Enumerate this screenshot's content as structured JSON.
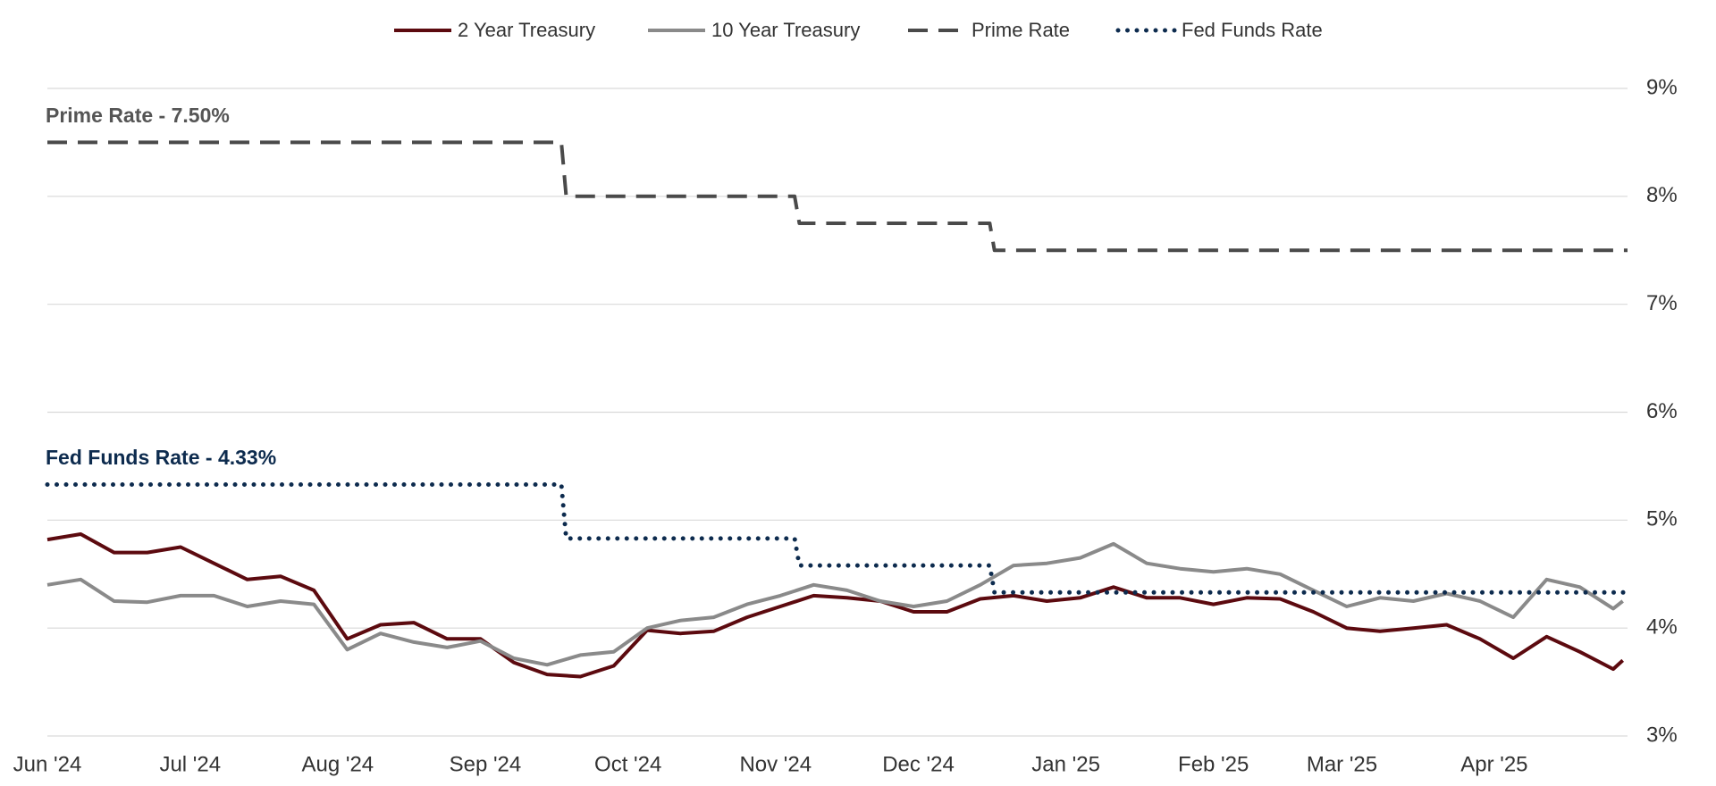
{
  "chart_data": {
    "type": "line",
    "annotations": [
      "Prime Rate - 7.50%",
      "Fed Funds Rate - 4.33%"
    ],
    "x": [
      0,
      7,
      14,
      21,
      28,
      35,
      42,
      49,
      56,
      63,
      70,
      77,
      84,
      91,
      98,
      105,
      112,
      119,
      126,
      133,
      140,
      147,
      154,
      161,
      168,
      175,
      182,
      189,
      196,
      203,
      210,
      217,
      224,
      231,
      238,
      245,
      252,
      259,
      266,
      273,
      280,
      287,
      294,
      301,
      308,
      315,
      322,
      329,
      331
    ],
    "xlim": [
      0,
      332
    ],
    "xticks": [
      {
        "value": 0,
        "label": "Jun '24"
      },
      {
        "value": 30,
        "label": "Jul '24"
      },
      {
        "value": 61,
        "label": "Aug '24"
      },
      {
        "value": 92,
        "label": "Sep '24"
      },
      {
        "value": 122,
        "label": "Oct '24"
      },
      {
        "value": 153,
        "label": "Nov '24"
      },
      {
        "value": 183,
        "label": "Dec '24"
      },
      {
        "value": 214,
        "label": "Jan '25"
      },
      {
        "value": 245,
        "label": "Feb '25"
      },
      {
        "value": 272,
        "label": "Mar '25"
      },
      {
        "value": 304,
        "label": "Apr '25"
      }
    ],
    "ylim": [
      3,
      9
    ],
    "yticks": [
      {
        "value": 3,
        "label": "3%"
      },
      {
        "value": 4,
        "label": "4%"
      },
      {
        "value": 5,
        "label": "5%"
      },
      {
        "value": 6,
        "label": "6%"
      },
      {
        "value": 7,
        "label": "7%"
      },
      {
        "value": 8,
        "label": "8%"
      },
      {
        "value": 9,
        "label": "9%"
      }
    ],
    "grid": true,
    "legend": "top",
    "series": [
      {
        "name": "2 Year Treasury",
        "color": "#5c0a0f",
        "style": "solid",
        "values": [
          4.82,
          4.87,
          4.7,
          4.7,
          4.75,
          4.6,
          4.45,
          4.48,
          4.35,
          3.9,
          4.03,
          4.05,
          3.9,
          3.9,
          3.68,
          3.57,
          3.55,
          3.65,
          3.98,
          3.95,
          3.97,
          4.1,
          4.2,
          4.3,
          4.28,
          4.25,
          4.15,
          4.15,
          4.27,
          4.3,
          4.25,
          4.28,
          4.38,
          4.28,
          4.28,
          4.22,
          4.28,
          4.27,
          4.15,
          4.0,
          3.97,
          4.0,
          4.03,
          3.9,
          3.72,
          3.92,
          3.78,
          3.62,
          3.7
        ]
      },
      {
        "name": "10 Year Treasury",
        "color": "#8a8a8a",
        "style": "solid",
        "values": [
          4.4,
          4.45,
          4.25,
          4.24,
          4.3,
          4.3,
          4.2,
          4.25,
          4.22,
          3.8,
          3.95,
          3.87,
          3.82,
          3.88,
          3.72,
          3.66,
          3.75,
          3.78,
          4.0,
          4.07,
          4.1,
          4.22,
          4.3,
          4.4,
          4.35,
          4.25,
          4.2,
          4.25,
          4.4,
          4.58,
          4.6,
          4.65,
          4.78,
          4.6,
          4.55,
          4.52,
          4.55,
          4.5,
          4.35,
          4.2,
          4.28,
          4.25,
          4.32,
          4.25,
          4.1,
          4.45,
          4.38,
          4.18,
          4.25
        ]
      },
      {
        "name": "Prime Rate",
        "color": "#4a4a4a",
        "style": "dashed",
        "x": [
          0,
          108,
          109,
          157,
          158,
          198,
          199,
          332
        ],
        "values": [
          8.5,
          8.5,
          8.0,
          8.0,
          7.75,
          7.75,
          7.5,
          7.5
        ]
      },
      {
        "name": "Fed Funds Rate",
        "color": "#0d2b4e",
        "style": "dotted",
        "x": [
          0,
          108,
          109,
          157,
          158,
          198,
          199,
          332
        ],
        "values": [
          5.33,
          5.33,
          4.83,
          4.83,
          4.58,
          4.58,
          4.33,
          4.33
        ]
      }
    ]
  }
}
